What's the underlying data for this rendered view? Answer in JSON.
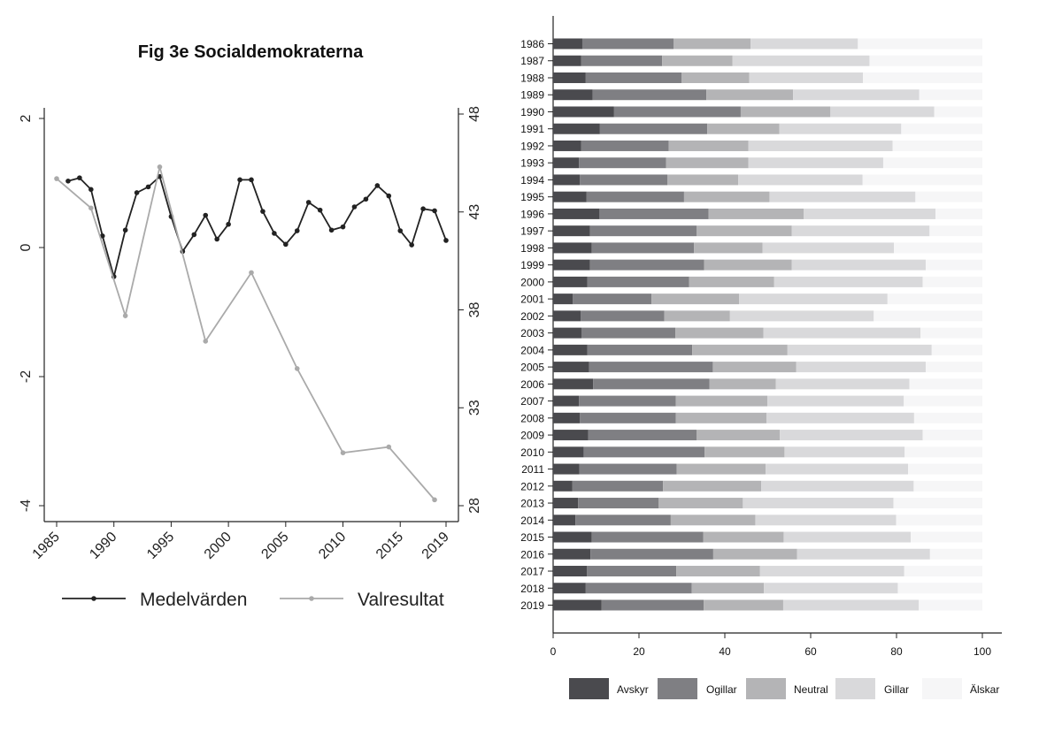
{
  "chart_data": [
    {
      "type": "line",
      "title": "Fig 3e  Socialdemokraterna",
      "x_ticks": [
        "1985",
        "1990",
        "1995",
        "2000",
        "2005",
        "2010",
        "2015",
        "2019"
      ],
      "xlim": [
        1985,
        2019
      ],
      "y_left_ticks": [
        "-4",
        "-2",
        "0",
        "2"
      ],
      "ylim_left": [
        -4,
        2
      ],
      "y_right_ticks": [
        "28",
        "33",
        "38",
        "43",
        "48"
      ],
      "ylim_right": [
        28,
        48
      ],
      "series": [
        {
          "name": "Medelvärden",
          "axis": "left",
          "color": "#222222",
          "x": [
            1986,
            1987,
            1988,
            1989,
            1990,
            1991,
            1992,
            1993,
            1994,
            1995,
            1996,
            1997,
            1998,
            1999,
            2000,
            2001,
            2002,
            2003,
            2004,
            2005,
            2006,
            2007,
            2008,
            2009,
            2010,
            2011,
            2012,
            2013,
            2014,
            2015,
            2016,
            2017,
            2018,
            2019
          ],
          "y": [
            1.03,
            1.08,
            0.9,
            0.18,
            -0.45,
            0.27,
            0.85,
            0.94,
            1.1,
            0.48,
            -0.06,
            0.2,
            0.5,
            0.13,
            0.36,
            1.05,
            1.05,
            0.56,
            0.22,
            0.05,
            0.26,
            0.7,
            0.58,
            0.27,
            0.32,
            0.63,
            0.75,
            0.96,
            0.8,
            0.26,
            0.04,
            0.6,
            0.57,
            0.11
          ]
        },
        {
          "name": "Valresultat",
          "axis": "right",
          "color": "#aaaaaa",
          "x": [
            1985,
            1988,
            1991,
            1994,
            1998,
            2002,
            2006,
            2010,
            2014,
            2018
          ],
          "y": [
            44.7,
            43.2,
            37.7,
            45.3,
            36.4,
            39.9,
            35.0,
            30.7,
            31.0,
            28.3
          ]
        }
      ]
    },
    {
      "type": "bar",
      "orientation": "horizontal",
      "stacked": true,
      "categories": [
        "1986",
        "1987",
        "1988",
        "1989",
        "1990",
        "1991",
        "1992",
        "1993",
        "1994",
        "1995",
        "1996",
        "1997",
        "1998",
        "1999",
        "2000",
        "2001",
        "2002",
        "2003",
        "2004",
        "2005",
        "2006",
        "2007",
        "2008",
        "2009",
        "2010",
        "2011",
        "2012",
        "2013",
        "2014",
        "2015",
        "2016",
        "2017",
        "2018",
        "2019"
      ],
      "x_ticks": [
        "0",
        "20",
        "40",
        "60",
        "80",
        "100"
      ],
      "xlim": [
        0,
        100
      ],
      "legend_position": "bottom",
      "series": [
        {
          "name": "Avskyr",
          "color": "#4a4a4e",
          "values": [
            6.8,
            6.5,
            7.6,
            9.2,
            14.2,
            10.9,
            6.5,
            6.0,
            6.2,
            7.8,
            10.8,
            8.6,
            9.0,
            8.6,
            8.0,
            4.6,
            6.4,
            6.6,
            8.0,
            8.4,
            9.3,
            6.0,
            6.2,
            8.2,
            7.1,
            6.1,
            4.5,
            5.8,
            5.2,
            9.0,
            8.7,
            7.9,
            7.6,
            11.3
          ]
        },
        {
          "name": "Ogillar",
          "color": "#7f7f83",
          "values": [
            21.3,
            18.9,
            22.3,
            26.5,
            29.5,
            25.0,
            20.4,
            20.3,
            20.4,
            22.7,
            25.4,
            24.8,
            23.8,
            26.6,
            23.7,
            18.3,
            19.5,
            21.9,
            24.4,
            28.8,
            27.1,
            22.6,
            22.4,
            25.2,
            28.2,
            22.7,
            21.1,
            18.8,
            22.2,
            26.0,
            28.6,
            20.8,
            24.7,
            23.8
          ]
        },
        {
          "name": "Neutral",
          "color": "#b4b4b6",
          "values": [
            17.9,
            16.4,
            15.8,
            20.2,
            20.9,
            16.8,
            18.6,
            19.2,
            16.5,
            19.9,
            22.2,
            22.2,
            16.0,
            20.4,
            19.8,
            20.4,
            15.3,
            20.5,
            22.2,
            19.4,
            15.5,
            21.3,
            21.1,
            19.4,
            18.6,
            20.7,
            22.9,
            19.6,
            19.7,
            18.7,
            19.5,
            19.5,
            16.8,
            18.5
          ]
        },
        {
          "name": "Gillar",
          "color": "#d9d9db",
          "values": [
            25.0,
            31.9,
            26.5,
            29.4,
            24.2,
            28.4,
            33.6,
            31.4,
            29.0,
            34.0,
            30.7,
            32.1,
            30.6,
            31.2,
            34.6,
            34.6,
            33.5,
            36.6,
            33.6,
            30.2,
            31.1,
            31.8,
            34.4,
            33.3,
            28.0,
            33.2,
            35.5,
            35.1,
            32.8,
            29.6,
            31.0,
            33.6,
            31.2,
            31.6
          ]
        },
        {
          "name": "Älskar",
          "color": "#f6f6f7",
          "values": [
            29.0,
            26.3,
            27.8,
            14.7,
            11.2,
            18.9,
            20.9,
            23.1,
            27.9,
            15.6,
            10.9,
            12.3,
            20.6,
            13.2,
            13.9,
            22.1,
            25.3,
            14.4,
            11.8,
            13.2,
            17.0,
            18.3,
            15.9,
            13.9,
            18.1,
            17.3,
            16.0,
            20.7,
            20.1,
            16.7,
            12.2,
            18.2,
            19.7,
            14.8
          ]
        }
      ]
    }
  ]
}
